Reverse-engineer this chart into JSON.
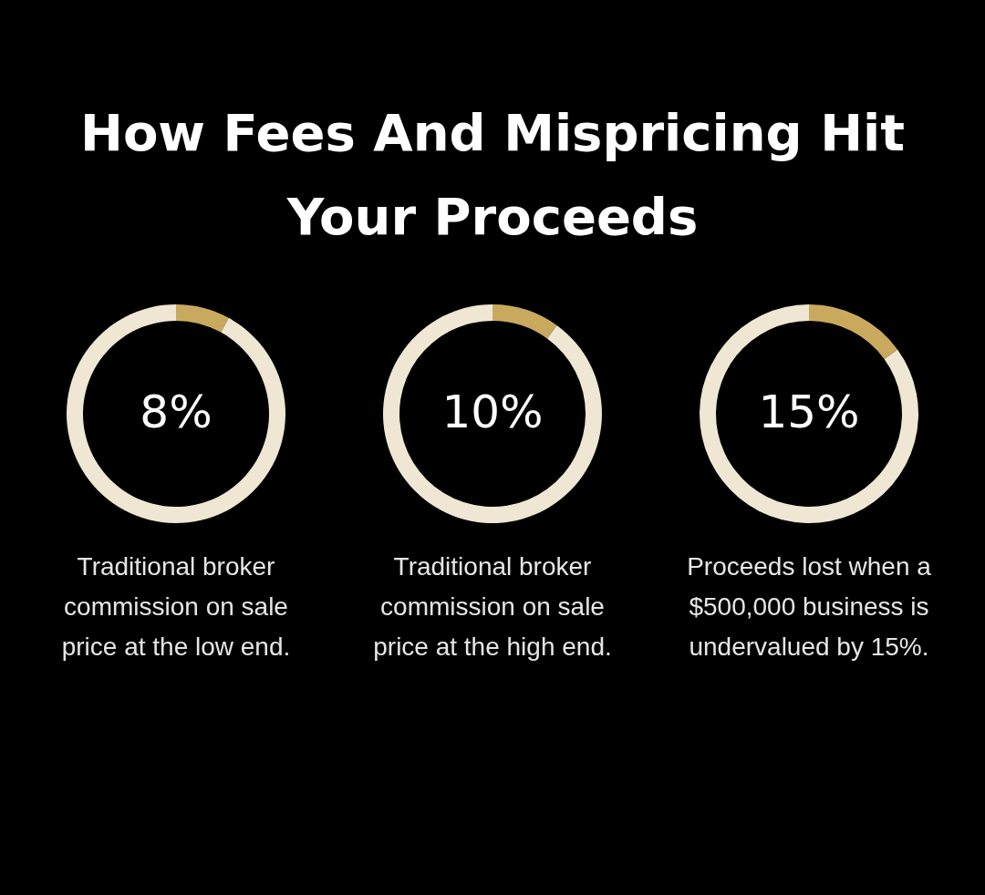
{
  "chart_data": [
    {
      "type": "donut",
      "title": "How Fees And Mispricing Hit Your Proceeds",
      "categories": [
        null,
        null
      ],
      "values": [
        8,
        92
      ],
      "colors": [
        "#c8a95e",
        "#efe6d3"
      ],
      "value_labels": [
        "8%",
        null
      ],
      "annotations": [
        "Traditional broker commission on sale price at the low end."
      ]
    },
    {
      "type": "donut",
      "categories": [
        null,
        null
      ],
      "values": [
        10,
        90
      ],
      "colors": [
        "#c8a95e",
        "#efe6d3"
      ],
      "value_labels": [
        "10%",
        null
      ],
      "annotations": [
        "Traditional broker commission on sale price at the high end."
      ]
    },
    {
      "type": "donut",
      "categories": [
        null,
        null
      ],
      "values": [
        15,
        85
      ],
      "colors": [
        "#c8a95e",
        "#efe6d3"
      ],
      "value_labels": [
        "15%",
        null
      ],
      "annotations": [
        "Proceeds lost when a $500,000 business is undervalued by 15%."
      ]
    }
  ]
}
